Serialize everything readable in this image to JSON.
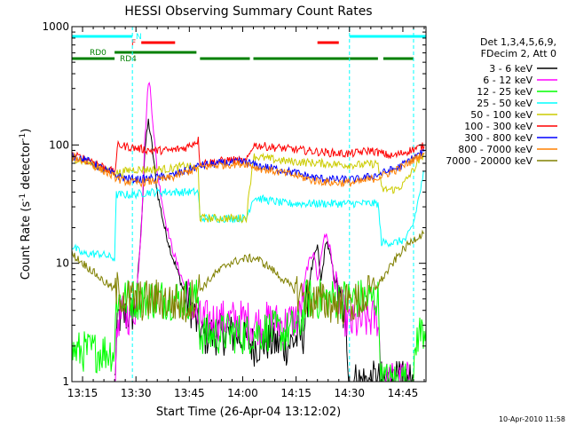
{
  "chart_data": {
    "type": "line",
    "title": "HESSI Observing Summary Count Rates",
    "xlabel": "Start Time (26-Apr-04 13:12:02)",
    "ylabel_main": "Count Rate (s",
    "ylabel_sup1": "-1",
    "ylabel_mid": " detector",
    "ylabel_sup2": "-1",
    "ylabel_end": ")",
    "yscale": "log",
    "xlim_min": [
      0,
      99.5
    ],
    "ylim": [
      1,
      1000
    ],
    "xticks": [
      3,
      18,
      33,
      48,
      63,
      78,
      93
    ],
    "xtick_labels": [
      "13:15",
      "13:30",
      "13:45",
      "14:00",
      "14:15",
      "14:30",
      "14:45"
    ],
    "yticks": [
      1,
      10,
      100,
      1000
    ],
    "ytick_labels": [
      "1",
      "10",
      "100",
      "1000"
    ],
    "timestamp": "10-Apr-2010 11:58",
    "legend": {
      "header_lines": [
        "Det 1,3,4,5,6,9,",
        "FDecim 2, Att 0"
      ],
      "entries": [
        {
          "label": "3 - 6 keV",
          "color": "#000000"
        },
        {
          "label": "6 - 12 keV",
          "color": "#ff00ff"
        },
        {
          "label": "12 - 25 keV",
          "color": "#00ff00"
        },
        {
          "label": "25 - 50 keV",
          "color": "#00ffff"
        },
        {
          "label": "50 - 100 keV",
          "color": "#cccc00"
        },
        {
          "label": "100 - 300 keV",
          "color": "#ff0000"
        },
        {
          "label": "300 - 800 keV",
          "color": "#0000ff"
        },
        {
          "label": "800 - 7000 keV",
          "color": "#ff8000"
        },
        {
          "label": "7000 - 20000 keV",
          "color": "#808000"
        }
      ]
    },
    "flag_bars": [
      {
        "label": "N",
        "color": "#00ffff",
        "segments": [
          [
            0,
            17
          ],
          [
            78,
            99.5
          ]
        ]
      },
      {
        "label": "F",
        "color": "#ff0000",
        "segments": [
          [
            19.5,
            29
          ],
          [
            69,
            75
          ]
        ]
      },
      {
        "label": "RD0",
        "color": "#008000",
        "segments": [
          [
            12,
            35
          ]
        ]
      },
      {
        "label": "RD4",
        "color": "#008000",
        "segments": [
          [
            0,
            12
          ],
          [
            36,
            50
          ],
          [
            51,
            86
          ],
          [
            87.5,
            96
          ]
        ]
      }
    ],
    "night_boundaries": [
      17,
      78,
      96
    ],
    "series": [
      {
        "name": "3 - 6 keV",
        "color": "#000000",
        "points": [
          [
            12,
            1
          ],
          [
            13,
            3.5
          ],
          [
            15,
            3.6
          ],
          [
            17,
            3.8
          ],
          [
            18,
            4.5
          ],
          [
            19.5,
            20
          ],
          [
            20.5,
            90
          ],
          [
            21.5,
            160
          ],
          [
            22.5,
            100
          ],
          [
            24,
            40
          ],
          [
            26,
            20
          ],
          [
            28,
            12
          ],
          [
            30,
            8
          ],
          [
            32,
            5
          ],
          [
            34,
            4
          ],
          [
            35.5,
            2.8
          ],
          [
            37,
            2.4
          ],
          [
            40,
            2.5
          ],
          [
            45,
            2.5
          ],
          [
            49,
            2.3
          ],
          [
            51,
            2.0
          ],
          [
            55,
            2.2
          ],
          [
            60,
            2.0
          ],
          [
            65,
            2.5
          ],
          [
            67,
            8
          ],
          [
            69,
            14
          ],
          [
            70,
            7
          ],
          [
            71.5,
            16
          ],
          [
            73,
            10
          ],
          [
            75,
            5
          ],
          [
            77,
            3
          ],
          [
            78,
            1
          ],
          [
            86,
            1
          ],
          [
            87,
            1
          ],
          [
            96,
            1
          ]
        ]
      },
      {
        "name": "6 - 12 keV",
        "color": "#ff00ff",
        "points": [
          [
            12,
            1
          ],
          [
            13,
            3.5
          ],
          [
            15,
            3.6
          ],
          [
            17,
            3.8
          ],
          [
            18,
            4.5
          ],
          [
            19.5,
            20
          ],
          [
            20.5,
            110
          ],
          [
            21.5,
            350
          ],
          [
            22,
            300
          ],
          [
            23,
            130
          ],
          [
            24,
            60
          ],
          [
            26,
            25
          ],
          [
            28,
            14
          ],
          [
            30,
            9
          ],
          [
            32,
            6
          ],
          [
            34,
            4.5
          ],
          [
            35.5,
            3.3
          ],
          [
            40,
            3.3
          ],
          [
            45,
            3.3
          ],
          [
            49,
            3.3
          ],
          [
            51,
            3.0
          ],
          [
            55,
            3.2
          ],
          [
            60,
            3.1
          ],
          [
            64,
            3.5
          ],
          [
            66,
            9
          ],
          [
            68,
            13
          ],
          [
            69,
            7
          ],
          [
            71,
            18
          ],
          [
            72.5,
            14
          ],
          [
            74,
            6
          ],
          [
            76,
            4
          ],
          [
            78,
            3
          ],
          [
            86,
            3.5
          ],
          [
            87,
            1
          ],
          [
            96,
            1
          ]
        ]
      },
      {
        "name": "12 - 25 keV",
        "color": "#00ff00",
        "points": [
          [
            0,
            1.8
          ],
          [
            12,
            1.8
          ],
          [
            12.5,
            5
          ],
          [
            17,
            5
          ],
          [
            22,
            5
          ],
          [
            28,
            5
          ],
          [
            35.5,
            5
          ],
          [
            36,
            2.5
          ],
          [
            40,
            2.5
          ],
          [
            45,
            2.6
          ],
          [
            49,
            2.5
          ],
          [
            51,
            2.6
          ],
          [
            55,
            2.7
          ],
          [
            60,
            2.6
          ],
          [
            64,
            3.0
          ],
          [
            66,
            5
          ],
          [
            78,
            5
          ],
          [
            86,
            5
          ],
          [
            87,
            1
          ],
          [
            96,
            1
          ],
          [
            97,
            2.5
          ],
          [
            99.5,
            2.8
          ]
        ]
      },
      {
        "name": "25 - 50 keV",
        "color": "#00ffff",
        "points": [
          [
            0,
            14
          ],
          [
            3,
            12
          ],
          [
            8,
            12
          ],
          [
            12,
            11
          ],
          [
            12.5,
            38
          ],
          [
            17,
            38
          ],
          [
            22,
            40
          ],
          [
            28,
            40
          ],
          [
            34,
            40
          ],
          [
            35.5,
            40
          ],
          [
            36,
            24
          ],
          [
            42,
            24
          ],
          [
            49,
            24
          ],
          [
            51,
            36
          ],
          [
            60,
            32
          ],
          [
            70,
            32
          ],
          [
            78,
            32
          ],
          [
            86,
            32
          ],
          [
            87,
            15
          ],
          [
            91,
            15
          ],
          [
            94,
            16
          ],
          [
            96,
            22
          ],
          [
            99,
            60
          ]
        ]
      },
      {
        "name": "50 - 100 keV",
        "color": "#cccc00",
        "points": [
          [
            0,
            78
          ],
          [
            5,
            70
          ],
          [
            10,
            60
          ],
          [
            13,
            58
          ],
          [
            17,
            62
          ],
          [
            20,
            62
          ],
          [
            24,
            62
          ],
          [
            28,
            63
          ],
          [
            32,
            67
          ],
          [
            35.5,
            62
          ],
          [
            36,
            24
          ],
          [
            42,
            24
          ],
          [
            49,
            24
          ],
          [
            51,
            80
          ],
          [
            60,
            73
          ],
          [
            70,
            70
          ],
          [
            77,
            68
          ],
          [
            82,
            68
          ],
          [
            86,
            70
          ],
          [
            87,
            42
          ],
          [
            91,
            42
          ],
          [
            93,
            46
          ],
          [
            96,
            62
          ],
          [
            99,
            85
          ]
        ]
      },
      {
        "name": "100 - 300 keV",
        "color": "#ff0000",
        "points": [
          [
            0,
            82
          ],
          [
            5,
            75
          ],
          [
            10,
            63
          ],
          [
            12,
            58
          ],
          [
            13,
            100
          ],
          [
            17,
            95
          ],
          [
            22,
            90
          ],
          [
            28,
            90
          ],
          [
            32,
            95
          ],
          [
            35.5,
            110
          ],
          [
            36,
            70
          ],
          [
            40,
            72
          ],
          [
            45,
            75
          ],
          [
            49,
            72
          ],
          [
            51,
            100
          ],
          [
            56,
            96
          ],
          [
            65,
            90
          ],
          [
            72,
            86
          ],
          [
            78,
            84
          ],
          [
            84,
            90
          ],
          [
            90,
            80
          ],
          [
            96,
            92
          ],
          [
            99,
            98
          ]
        ]
      },
      {
        "name": "300 - 800 keV",
        "color": "#0000ff",
        "points": [
          [
            0,
            82
          ],
          [
            5,
            72
          ],
          [
            10,
            60
          ],
          [
            14,
            53
          ],
          [
            18,
            51
          ],
          [
            22,
            52
          ],
          [
            28,
            55
          ],
          [
            33,
            62
          ],
          [
            36,
            67
          ],
          [
            42,
            70
          ],
          [
            49,
            72
          ],
          [
            52,
            67
          ],
          [
            57,
            63
          ],
          [
            63,
            58
          ],
          [
            68,
            53
          ],
          [
            73,
            51
          ],
          [
            80,
            51
          ],
          [
            86,
            56
          ],
          [
            92,
            65
          ],
          [
            96,
            78
          ],
          [
            99,
            88
          ]
        ]
      },
      {
        "name": "800 - 7000 keV",
        "color": "#ff8000",
        "points": [
          [
            0,
            80
          ],
          [
            5,
            70
          ],
          [
            10,
            58
          ],
          [
            14,
            50
          ],
          [
            18,
            48
          ],
          [
            22,
            49
          ],
          [
            28,
            53
          ],
          [
            33,
            60
          ],
          [
            36,
            65
          ],
          [
            42,
            68
          ],
          [
            49,
            70
          ],
          [
            52,
            64
          ],
          [
            57,
            60
          ],
          [
            63,
            55
          ],
          [
            68,
            50
          ],
          [
            73,
            48
          ],
          [
            80,
            48
          ],
          [
            86,
            53
          ],
          [
            92,
            63
          ],
          [
            96,
            75
          ],
          [
            99,
            86
          ]
        ]
      },
      {
        "name": "7000 - 20000 keV",
        "color": "#808000",
        "points": [
          [
            0,
            12
          ],
          [
            5,
            9
          ],
          [
            9,
            7
          ],
          [
            12,
            6
          ],
          [
            16,
            5
          ],
          [
            20,
            4.8
          ],
          [
            24,
            5
          ],
          [
            28,
            4.7
          ],
          [
            32,
            4.4
          ],
          [
            36,
            6
          ],
          [
            40,
            8
          ],
          [
            44,
            10
          ],
          [
            49,
            11
          ],
          [
            52,
            11
          ],
          [
            56,
            9
          ],
          [
            60,
            7
          ],
          [
            64,
            5.5
          ],
          [
            68,
            4.8
          ],
          [
            72,
            4.6
          ],
          [
            76,
            4.5
          ],
          [
            80,
            4.6
          ],
          [
            84,
            5.5
          ],
          [
            88,
            8
          ],
          [
            92,
            12
          ],
          [
            96,
            16
          ],
          [
            99,
            18
          ]
        ]
      }
    ]
  }
}
